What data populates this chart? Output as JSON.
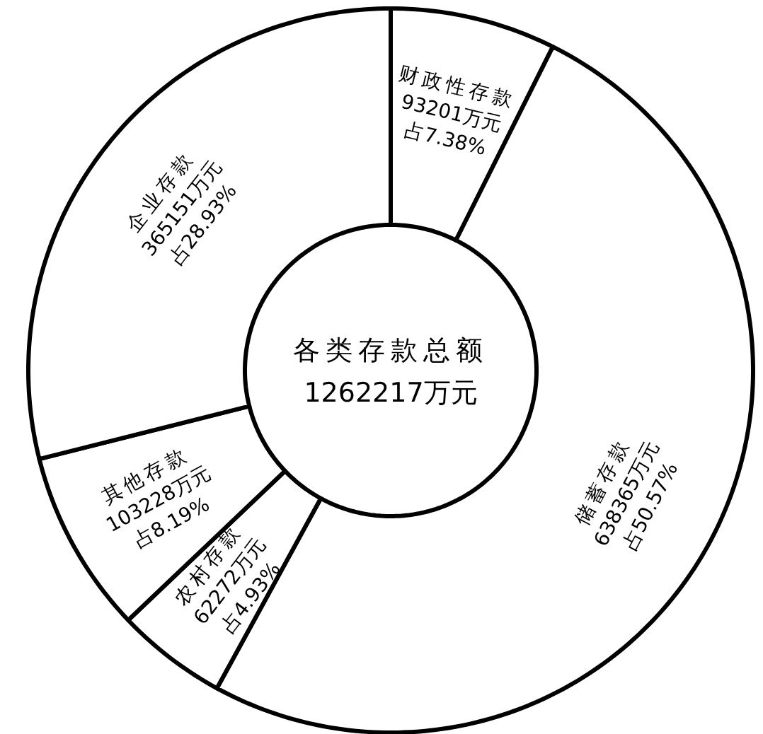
{
  "chart_data": {
    "type": "donut",
    "title": "各类存款总额",
    "subtitle": "1262217万元",
    "categories": [
      "财政性存款",
      "储蓄存款",
      "农村存款",
      "其他存款",
      "企业存款"
    ],
    "values": [
      93201,
      638365,
      62272,
      103228,
      365151
    ],
    "value_labels": [
      "93201万元 占7.38%",
      "638365万元 占50.57%",
      "62272万元 占4.93%",
      "103228万元 占8.19%",
      "365151万元 占28.93%"
    ],
    "colors": [
      "#ffffff",
      "#ffffff",
      "#ffffff",
      "#ffffff",
      "#ffffff"
    ]
  }
}
